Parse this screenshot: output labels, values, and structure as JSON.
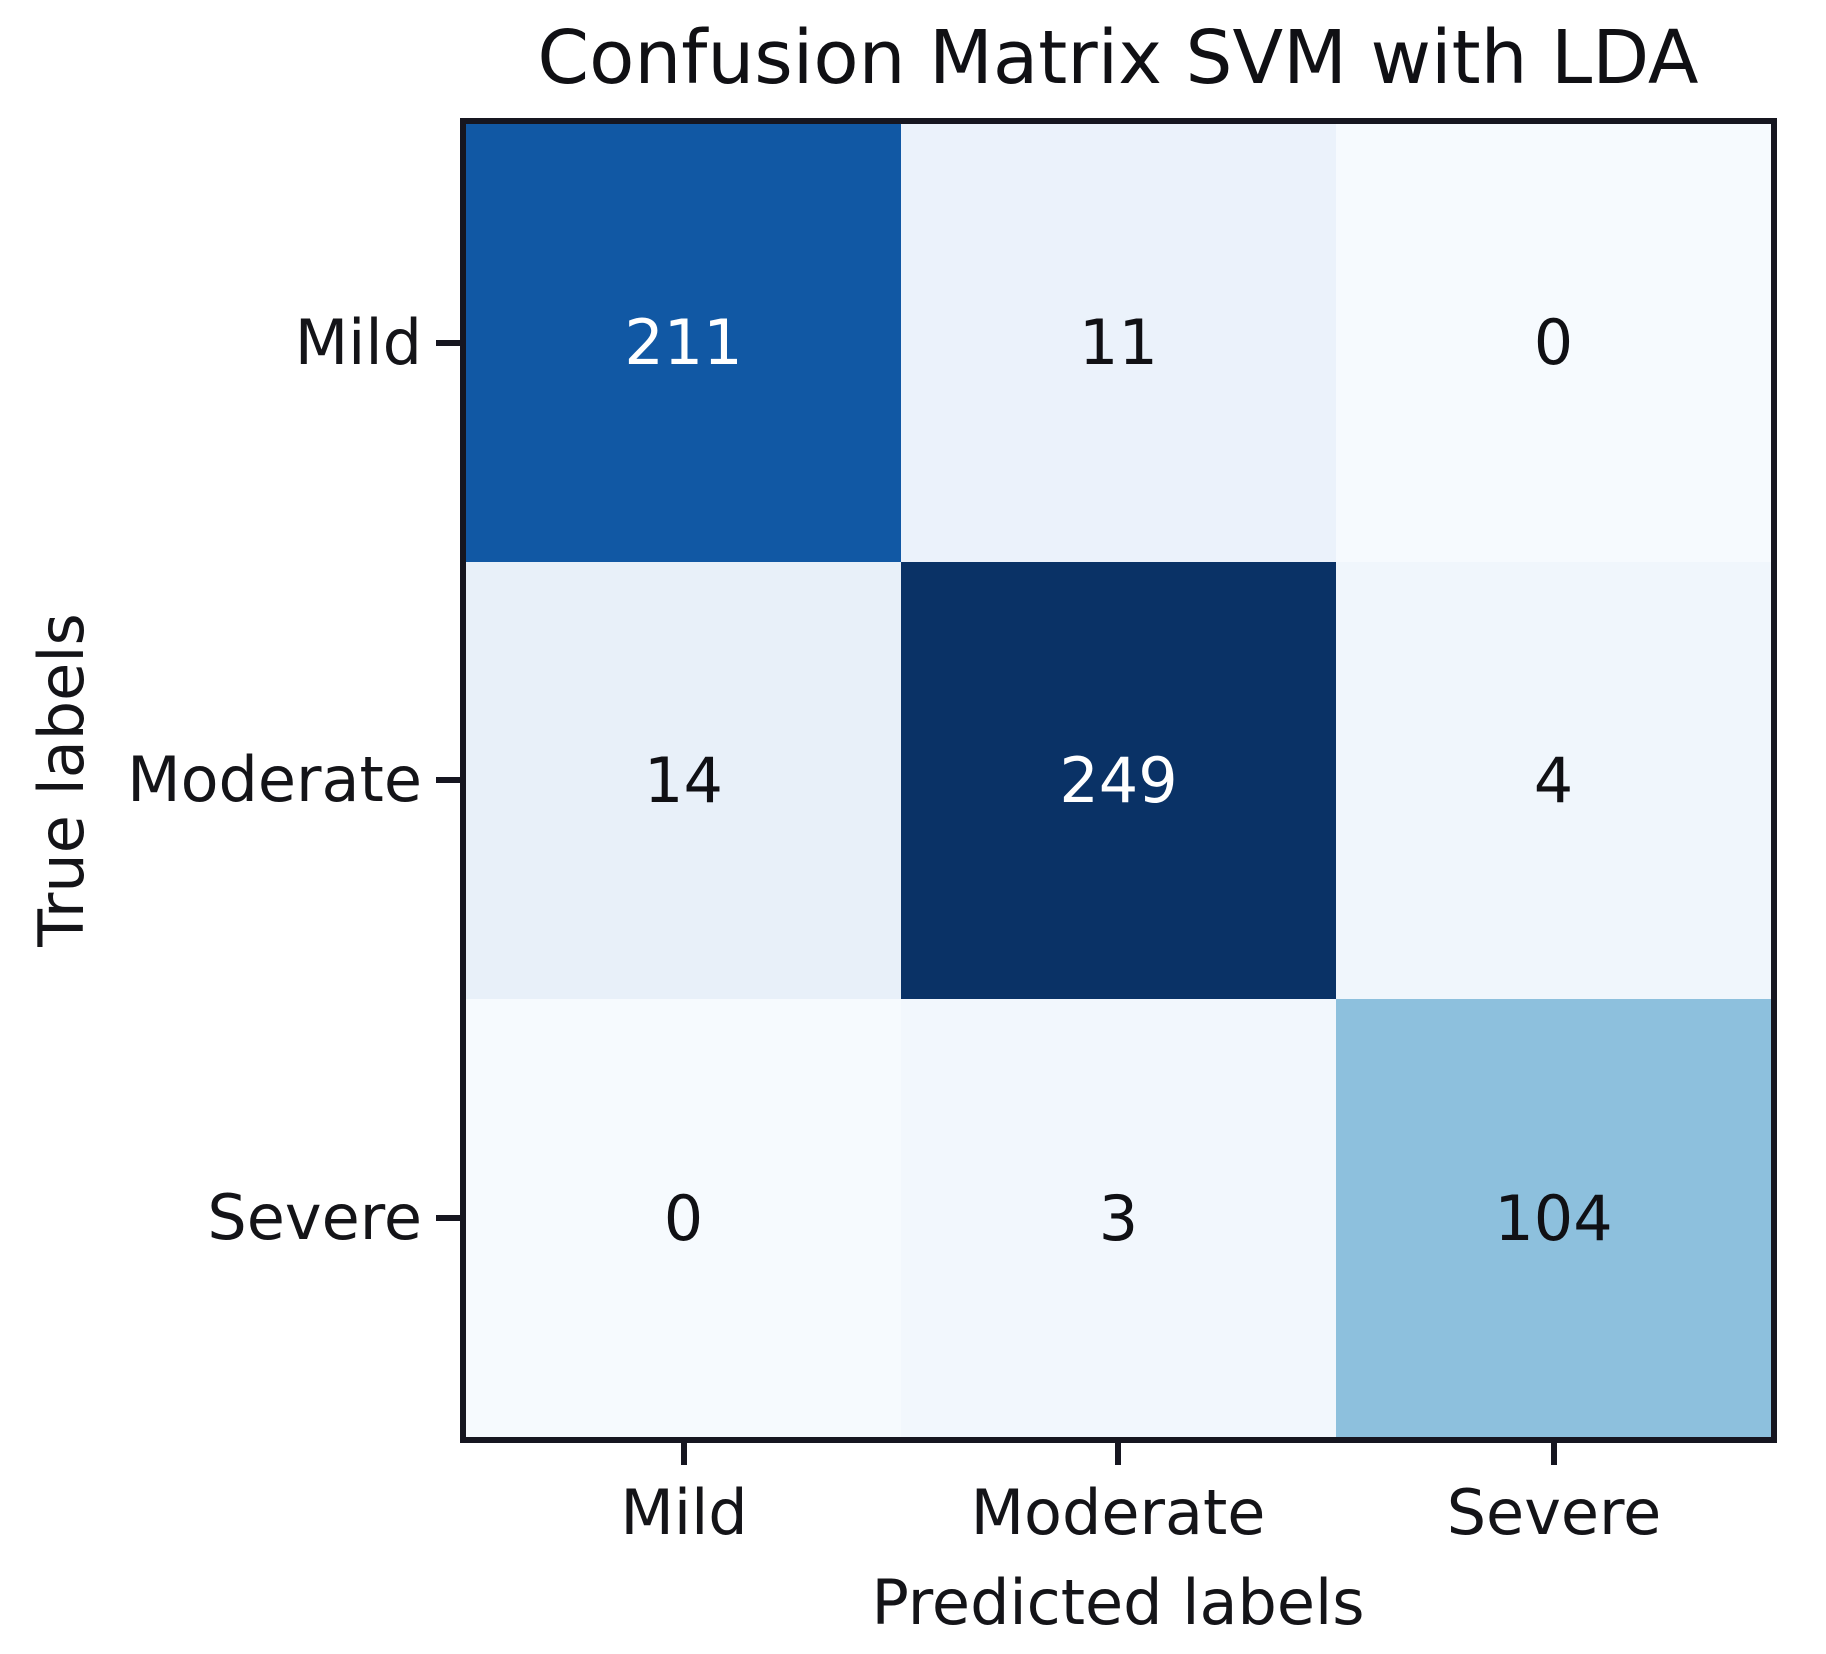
{
  "title": "Confusion Matrix SVM with LDA",
  "chart_data": {
    "type": "heatmap",
    "title": "Confusion Matrix SVM with LDA",
    "xlabel": "Predicted labels",
    "ylabel": "True labels",
    "x_categories": [
      "Mild",
      "Moderate",
      "Severe"
    ],
    "y_categories": [
      "Mild",
      "Moderate",
      "Severe"
    ],
    "matrix": [
      [
        211,
        11,
        0
      ],
      [
        14,
        249,
        4
      ],
      [
        0,
        3,
        104
      ]
    ],
    "colormap": "Blues",
    "vmin": 0,
    "vmax": 249,
    "grid": false,
    "legend": "none",
    "cell_colors": [
      [
        "#1158A4",
        "#EBF2FB",
        "#F6FAFE"
      ],
      [
        "#E8F0F9",
        "#0A3266",
        "#F0F6FC"
      ],
      [
        "#F6FAFE",
        "#F2F7FD",
        "#8DC0DD"
      ]
    ],
    "cell_text_colors": [
      [
        "#FFFFFF",
        "#101014",
        "#101014"
      ],
      [
        "#101014",
        "#FFFFFF",
        "#101014"
      ],
      [
        "#101014",
        "#101014",
        "#101014"
      ]
    ],
    "spine_color": "#161620"
  }
}
